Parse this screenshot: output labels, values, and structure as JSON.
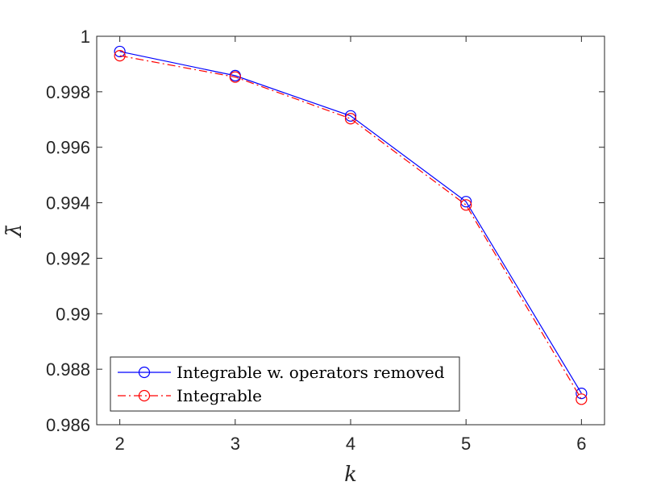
{
  "chart_data": {
    "type": "line",
    "xlabel": "k",
    "ylabel": "λ̄",
    "x": [
      2,
      3,
      4,
      5,
      6
    ],
    "xlim": [
      1.8,
      6.2
    ],
    "ylim": [
      0.986,
      1.0
    ],
    "xticks": [
      "2",
      "3",
      "4",
      "5",
      "6"
    ],
    "yticks": [
      "0.986",
      "0.988",
      "0.99",
      "0.992",
      "0.994",
      "0.996",
      "0.998",
      "1"
    ],
    "grid": false,
    "legend_position": "bottom-left",
    "series": [
      {
        "name": "Integrable w. operators removed",
        "values": [
          0.99945,
          0.99858,
          0.99713,
          0.99404,
          0.98713
        ],
        "color": "#0000ff",
        "line_style": "solid",
        "marker": "circle"
      },
      {
        "name": "Integrable",
        "values": [
          0.9993,
          0.99853,
          0.99703,
          0.99392,
          0.98692
        ],
        "color": "#ff0000",
        "line_style": "dash-dot",
        "marker": "circle"
      }
    ]
  }
}
